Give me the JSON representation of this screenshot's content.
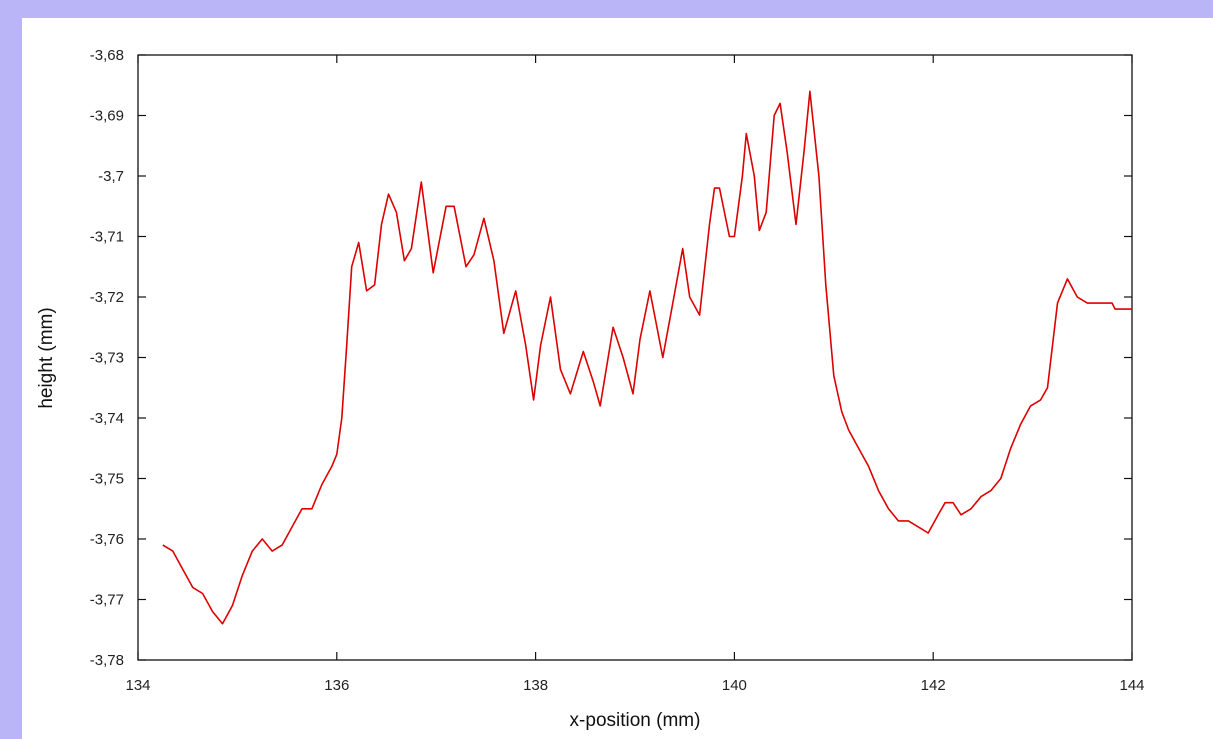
{
  "chart_data": {
    "type": "line",
    "title": "",
    "xlabel": "x-position (mm)",
    "ylabel": "height (mm)",
    "xlim": [
      134,
      144
    ],
    "ylim": [
      -3.78,
      -3.68
    ],
    "x_ticks": [
      134,
      136,
      138,
      140,
      142,
      144
    ],
    "x_tick_labels": [
      "134",
      "136",
      "138",
      "140",
      "142",
      "144"
    ],
    "y_ticks": [
      -3.68,
      -3.69,
      -3.7,
      -3.71,
      -3.72,
      -3.73,
      -3.74,
      -3.75,
      -3.76,
      -3.77,
      -3.78
    ],
    "y_tick_labels": [
      "-3,68",
      "-3,69",
      "-3,7",
      "-3,71",
      "-3,72",
      "-3,73",
      "-3,74",
      "-3,75",
      "-3,76",
      "-3,77",
      "-3,78"
    ],
    "grid": false,
    "legend": "none",
    "series": [
      {
        "color": "#dd0000",
        "points": [
          [
            134.25,
            -3.761
          ],
          [
            134.35,
            -3.762
          ],
          [
            134.45,
            -3.765
          ],
          [
            134.55,
            -3.768
          ],
          [
            134.65,
            -3.769
          ],
          [
            134.75,
            -3.772
          ],
          [
            134.85,
            -3.774
          ],
          [
            134.95,
            -3.771
          ],
          [
            135.05,
            -3.766
          ],
          [
            135.15,
            -3.762
          ],
          [
            135.25,
            -3.76
          ],
          [
            135.35,
            -3.762
          ],
          [
            135.45,
            -3.761
          ],
          [
            135.55,
            -3.758
          ],
          [
            135.65,
            -3.755
          ],
          [
            135.75,
            -3.755
          ],
          [
            135.85,
            -3.751
          ],
          [
            135.95,
            -3.748
          ],
          [
            136.0,
            -3.746
          ],
          [
            136.05,
            -3.74
          ],
          [
            136.1,
            -3.728
          ],
          [
            136.15,
            -3.715
          ],
          [
            136.22,
            -3.711
          ],
          [
            136.3,
            -3.719
          ],
          [
            136.38,
            -3.718
          ],
          [
            136.45,
            -3.708
          ],
          [
            136.52,
            -3.703
          ],
          [
            136.6,
            -3.706
          ],
          [
            136.68,
            -3.714
          ],
          [
            136.75,
            -3.712
          ],
          [
            136.85,
            -3.701
          ],
          [
            136.97,
            -3.716
          ],
          [
            137.1,
            -3.705
          ],
          [
            137.18,
            -3.705
          ],
          [
            137.3,
            -3.715
          ],
          [
            137.38,
            -3.713
          ],
          [
            137.48,
            -3.707
          ],
          [
            137.58,
            -3.714
          ],
          [
            137.68,
            -3.726
          ],
          [
            137.8,
            -3.719
          ],
          [
            137.9,
            -3.728
          ],
          [
            137.98,
            -3.737
          ],
          [
            138.05,
            -3.728
          ],
          [
            138.15,
            -3.72
          ],
          [
            138.25,
            -3.732
          ],
          [
            138.35,
            -3.736
          ],
          [
            138.48,
            -3.729
          ],
          [
            138.58,
            -3.734
          ],
          [
            138.65,
            -3.738
          ],
          [
            138.78,
            -3.725
          ],
          [
            138.88,
            -3.73
          ],
          [
            138.98,
            -3.736
          ],
          [
            139.05,
            -3.727
          ],
          [
            139.15,
            -3.719
          ],
          [
            139.28,
            -3.73
          ],
          [
            139.38,
            -3.721
          ],
          [
            139.48,
            -3.712
          ],
          [
            139.55,
            -3.72
          ],
          [
            139.65,
            -3.723
          ],
          [
            139.75,
            -3.708
          ],
          [
            139.8,
            -3.702
          ],
          [
            139.85,
            -3.702
          ],
          [
            139.95,
            -3.71
          ],
          [
            140.0,
            -3.71
          ],
          [
            140.08,
            -3.7
          ],
          [
            140.12,
            -3.693
          ],
          [
            140.2,
            -3.7
          ],
          [
            140.25,
            -3.709
          ],
          [
            140.32,
            -3.706
          ],
          [
            140.4,
            -3.69
          ],
          [
            140.46,
            -3.688
          ],
          [
            140.53,
            -3.696
          ],
          [
            140.62,
            -3.708
          ],
          [
            140.7,
            -3.696
          ],
          [
            140.76,
            -3.686
          ],
          [
            140.85,
            -3.7
          ],
          [
            140.92,
            -3.718
          ],
          [
            141.0,
            -3.733
          ],
          [
            141.08,
            -3.739
          ],
          [
            141.15,
            -3.742
          ],
          [
            141.25,
            -3.745
          ],
          [
            141.35,
            -3.748
          ],
          [
            141.45,
            -3.752
          ],
          [
            141.55,
            -3.755
          ],
          [
            141.65,
            -3.757
          ],
          [
            141.75,
            -3.757
          ],
          [
            141.85,
            -3.758
          ],
          [
            141.95,
            -3.759
          ],
          [
            142.05,
            -3.756
          ],
          [
            142.12,
            -3.754
          ],
          [
            142.2,
            -3.754
          ],
          [
            142.28,
            -3.756
          ],
          [
            142.38,
            -3.755
          ],
          [
            142.48,
            -3.753
          ],
          [
            142.58,
            -3.752
          ],
          [
            142.68,
            -3.75
          ],
          [
            142.78,
            -3.745
          ],
          [
            142.88,
            -3.741
          ],
          [
            142.98,
            -3.738
          ],
          [
            143.08,
            -3.737
          ],
          [
            143.15,
            -3.735
          ],
          [
            143.25,
            -3.721
          ],
          [
            143.35,
            -3.717
          ],
          [
            143.45,
            -3.72
          ],
          [
            143.55,
            -3.721
          ],
          [
            143.7,
            -3.721
          ],
          [
            143.8,
            -3.721
          ],
          [
            143.83,
            -3.722
          ],
          [
            144.0,
            -3.722
          ]
        ]
      }
    ]
  }
}
